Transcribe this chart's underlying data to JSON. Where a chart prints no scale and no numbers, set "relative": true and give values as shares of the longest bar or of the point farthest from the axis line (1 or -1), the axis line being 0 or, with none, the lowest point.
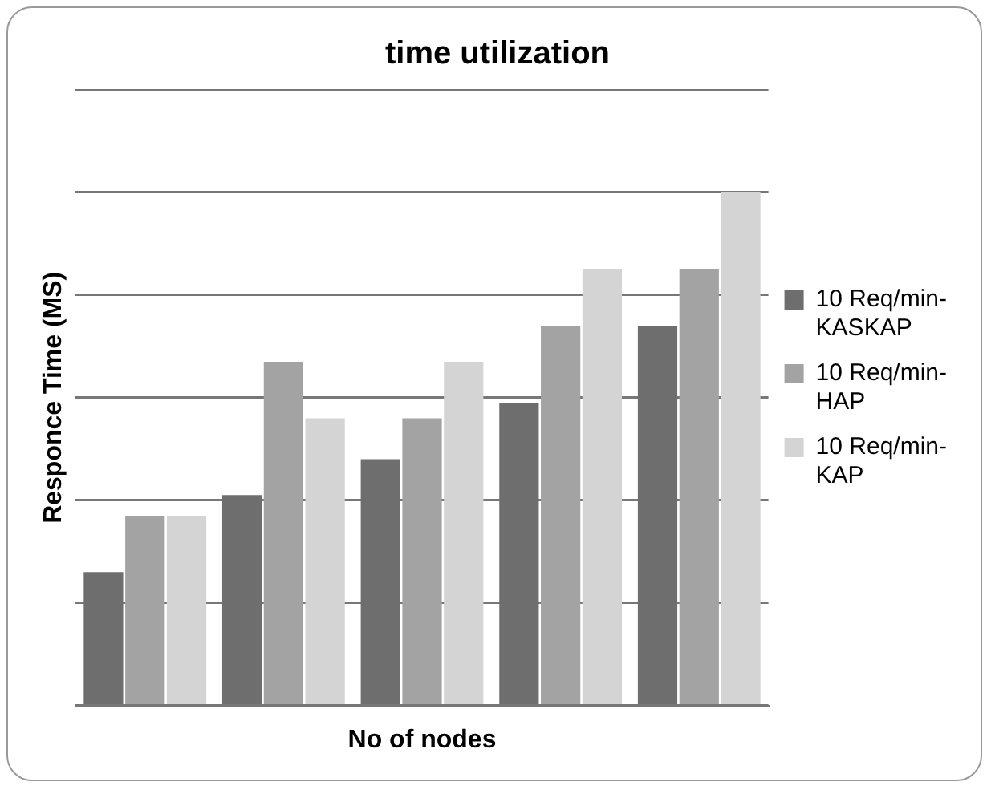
{
  "chart_data": {
    "type": "bar",
    "title": "time utilization",
    "xlabel": "No of nodes",
    "ylabel": "Responce Time (MS)",
    "relative": true,
    "grid": "y",
    "legend": "right",
    "categories": [
      null,
      null,
      null,
      null,
      null
    ],
    "series": [
      {
        "name": "10 Req/min-KASKAP",
        "color": "#6e6e6e",
        "values": [
          0.26,
          0.41,
          0.48,
          0.59,
          0.74
        ]
      },
      {
        "name": "10 Req/min-HAP",
        "color": "#a3a3a3",
        "values": [
          0.37,
          0.67,
          0.56,
          0.74,
          0.85
        ]
      },
      {
        "name": "10 Req/min-KAP",
        "color": "#d4d4d4",
        "values": [
          0.37,
          0.56,
          0.67,
          0.85,
          1
        ]
      }
    ]
  }
}
